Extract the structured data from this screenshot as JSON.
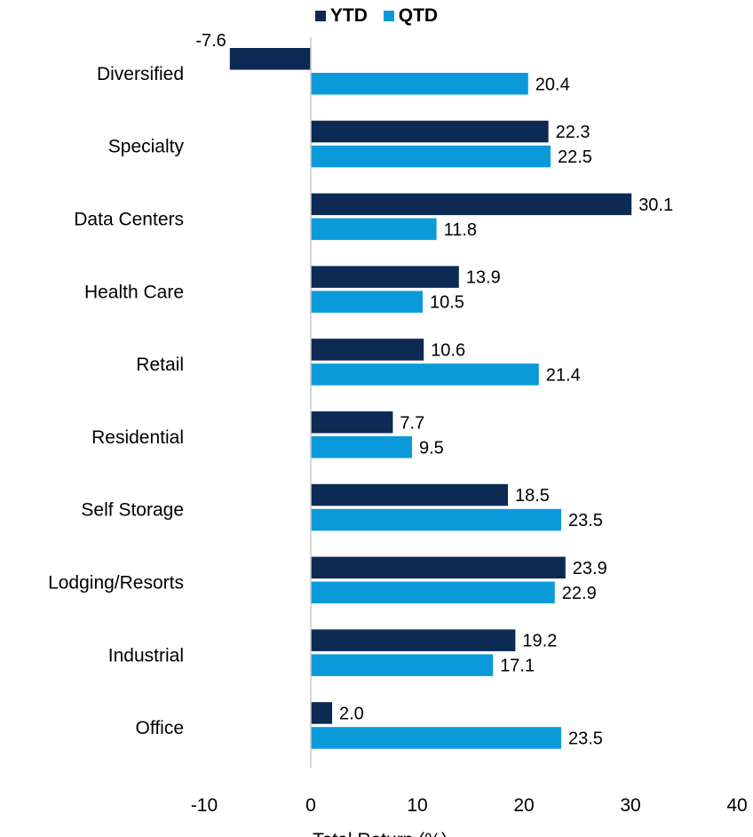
{
  "chart_data": {
    "type": "bar",
    "orientation": "horizontal",
    "categories": [
      "Diversified",
      "Specialty",
      "Data Centers",
      "Health Care",
      "Retail",
      "Residential",
      "Self Storage",
      "Lodging/Resorts",
      "Industrial",
      "Office"
    ],
    "series": [
      {
        "name": "YTD",
        "color": "#0d2a54",
        "values": [
          -7.6,
          22.3,
          30.1,
          13.9,
          10.6,
          7.7,
          18.5,
          23.9,
          19.2,
          2.0
        ],
        "labels": [
          "-7.6",
          "22.3",
          "30.1",
          "13.9",
          "10.6",
          "7.7",
          "18.5",
          "23.9",
          "19.2",
          "2.0"
        ]
      },
      {
        "name": "QTD",
        "color": "#0b9ad9",
        "values": [
          20.4,
          22.5,
          11.8,
          10.5,
          21.4,
          9.5,
          23.5,
          22.9,
          17.1,
          23.5
        ],
        "labels": [
          "20.4",
          "22.5",
          "11.8",
          "10.5",
          "21.4",
          "9.5",
          "23.5",
          "22.9",
          "17.1",
          "23.5"
        ]
      }
    ],
    "xlabel": "Total Return (%)",
    "xlim": [
      -10,
      40
    ],
    "xticks": [
      "-10",
      "0",
      "10",
      "20",
      "30",
      "40"
    ],
    "legend_position": "top-center",
    "grid": false
  }
}
